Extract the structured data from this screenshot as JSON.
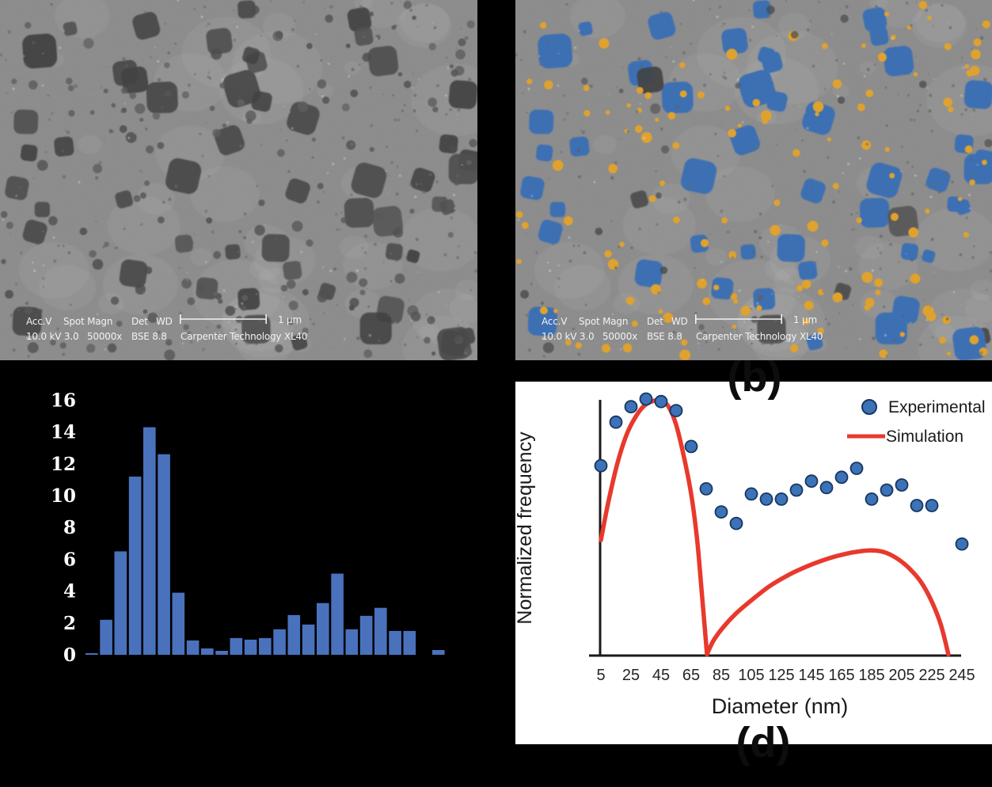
{
  "background_color": "#000000",
  "panel_labels": {
    "b": "(b)",
    "d": "(d)"
  },
  "sem": {
    "caption_row1": [
      "Acc.V",
      "Spot Magn",
      "Det",
      "WD"
    ],
    "caption_row2": [
      "10.0 kV 3.0",
      "50000x",
      "BSE 8.8",
      "Carpenter Technology XL40"
    ],
    "scale_label": "1 μm",
    "colors": {
      "base_gray": "#8d8d8d",
      "feature_gray": "#5e5e5e",
      "overlay_square_blue": "#3e6fb3",
      "overlay_dot_orange": "#dfa22f",
      "caption_text": "#f2f2f2"
    }
  },
  "chart_data": [
    {
      "type": "bar",
      "panel": "c",
      "title": "",
      "xlabel": "",
      "ylabel": "",
      "x_tick_labels_visible": false,
      "ylim": [
        0,
        16
      ],
      "yticks": [
        0,
        2,
        4,
        6,
        8,
        10,
        12,
        14,
        16
      ],
      "values": [
        0.1,
        2.2,
        6.5,
        11.2,
        14.3,
        12.6,
        3.9,
        0.9,
        0.4,
        0.25,
        1.05,
        0.95,
        1.05,
        1.6,
        2.5,
        1.9,
        3.25,
        5.1,
        1.6,
        2.45,
        2.95,
        1.5,
        1.5,
        0,
        0.3
      ],
      "bar_color": "#4a72bc",
      "tick_color": "#ffffff",
      "grid": false
    },
    {
      "type": "scatter",
      "panel": "d",
      "title": "",
      "xlabel": "Diameter (nm)",
      "ylabel": "Normalized frequency",
      "xticks": [
        5,
        25,
        45,
        65,
        85,
        105,
        125,
        145,
        165,
        185,
        205,
        225,
        245
      ],
      "xlim": [
        5,
        250
      ],
      "ylim": [
        0,
        1.05
      ],
      "y_tick_labels_visible": false,
      "grid": false,
      "legend_position": "top-right",
      "series": [
        {
          "name": "Experimental",
          "kind": "scatter",
          "color": "#3c72b8",
          "outline": "#17375e",
          "x": [
            5,
            15,
            25,
            35,
            45,
            55,
            65,
            75,
            85,
            95,
            105,
            115,
            125,
            135,
            145,
            155,
            165,
            175,
            185,
            195,
            205,
            215,
            225,
            245
          ],
          "y": [
            0.74,
            0.91,
            0.97,
            1.0,
            0.99,
            0.955,
            0.815,
            0.65,
            0.56,
            0.515,
            0.63,
            0.61,
            0.61,
            0.645,
            0.68,
            0.655,
            0.695,
            0.73,
            0.61,
            0.645,
            0.665,
            0.585,
            0.585,
            0.435
          ]
        },
        {
          "name": "Simulation",
          "kind": "line",
          "color": "#e8392d",
          "segments": [
            {
              "x": [
                5,
                10,
                16,
                22,
                28,
                34,
                40,
                45,
                50,
                55,
                60,
                65,
                69,
                72,
                75.5
              ],
              "y": [
                0.45,
                0.6,
                0.75,
                0.86,
                0.93,
                0.975,
                0.993,
                0.995,
                0.97,
                0.9,
                0.78,
                0.63,
                0.45,
                0.25,
                0.005
              ]
            },
            {
              "x": [
                75.5,
                80,
                87,
                95,
                105,
                117,
                130,
                143,
                156,
                168,
                178,
                186,
                194,
                202,
                210,
                218,
                225,
                231,
                236
              ],
              "y": [
                0.005,
                0.06,
                0.115,
                0.165,
                0.215,
                0.27,
                0.315,
                0.35,
                0.378,
                0.397,
                0.407,
                0.41,
                0.402,
                0.378,
                0.34,
                0.285,
                0.21,
                0.12,
                0.005
              ]
            }
          ]
        }
      ]
    }
  ]
}
